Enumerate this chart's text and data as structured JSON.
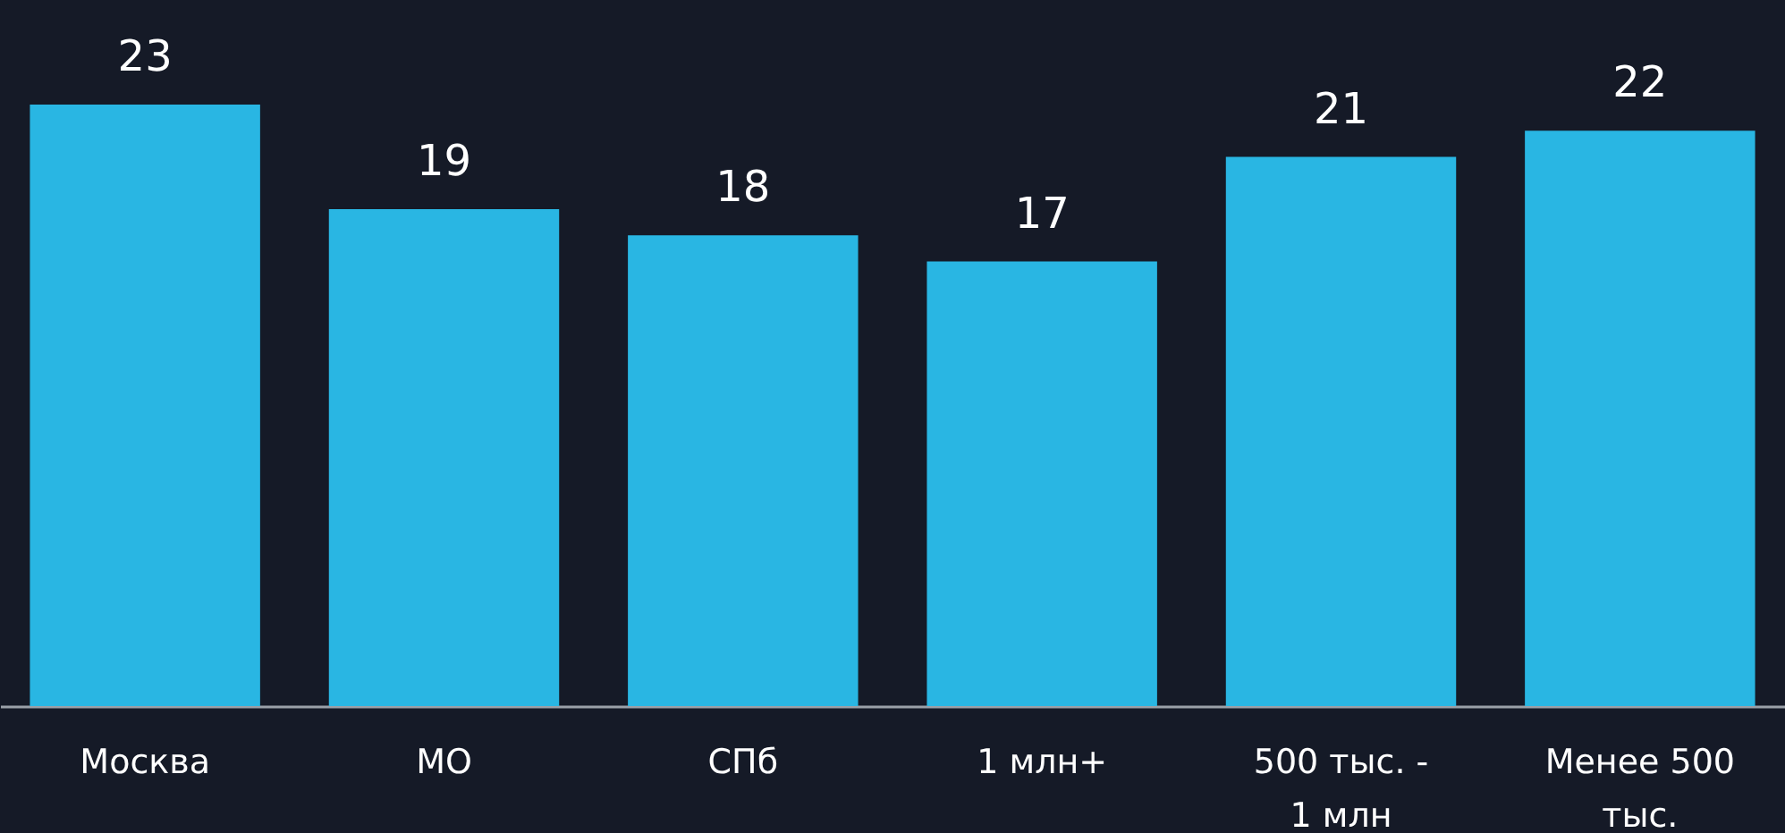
{
  "chart_data": {
    "type": "bar",
    "categories": [
      "Москва",
      "МО",
      "СПб",
      "1 млн+",
      "500 тыс. - 1 млн",
      "Менее 500 тыс."
    ],
    "values": [
      23,
      19,
      18,
      17,
      21,
      22
    ],
    "color": "#29b6e3",
    "ylim": [
      0,
      27
    ],
    "data_labels": true
  }
}
